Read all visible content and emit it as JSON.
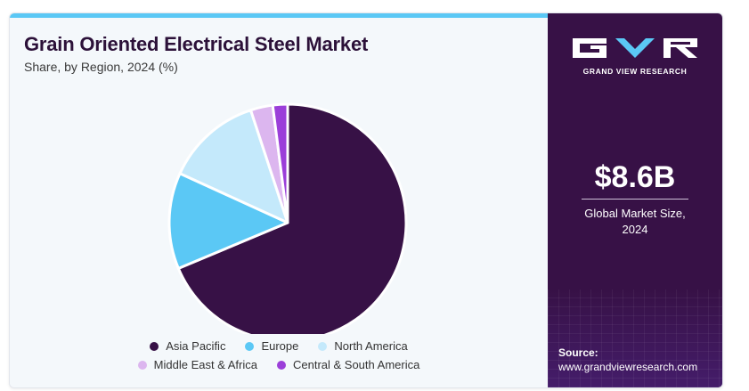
{
  "header": {
    "title": "Grain Oriented Electrical Steel Market",
    "subtitle": "Share, by Region, 2024 (%)"
  },
  "chart_data": {
    "type": "pie",
    "title": "Grain Oriented Electrical Steel Market",
    "subtitle": "Share, by Region, 2024 (%)",
    "categories": [
      "Asia Pacific",
      "Europe",
      "North America",
      "Middle East & Africa",
      "Central & South America"
    ],
    "values": [
      68.0,
      13.0,
      13.0,
      3.0,
      2.0
    ],
    "colors": [
      "#371146",
      "#5bc8f5",
      "#c4e9fb",
      "#dcb6ef",
      "#9b3fd9"
    ],
    "legend_position": "bottom"
  },
  "legend": {
    "row1": [
      "Asia Pacific",
      "Europe",
      "North America"
    ],
    "row2": [
      "Middle East & Africa",
      "Central & South America"
    ]
  },
  "brand": {
    "name": "GRAND VIEW RESEARCH",
    "logo_color": "#ffffff"
  },
  "highlight": {
    "value": "$8.6B",
    "label_line1": "Global Market Size,",
    "label_line2": "2024"
  },
  "source": {
    "label": "Source:",
    "url": "www.grandviewresearch.com"
  },
  "colors": {
    "panel_dark": "#371146",
    "panel_light": "#f4f8fb",
    "accent": "#5bc8f5",
    "title": "#2c1139"
  }
}
